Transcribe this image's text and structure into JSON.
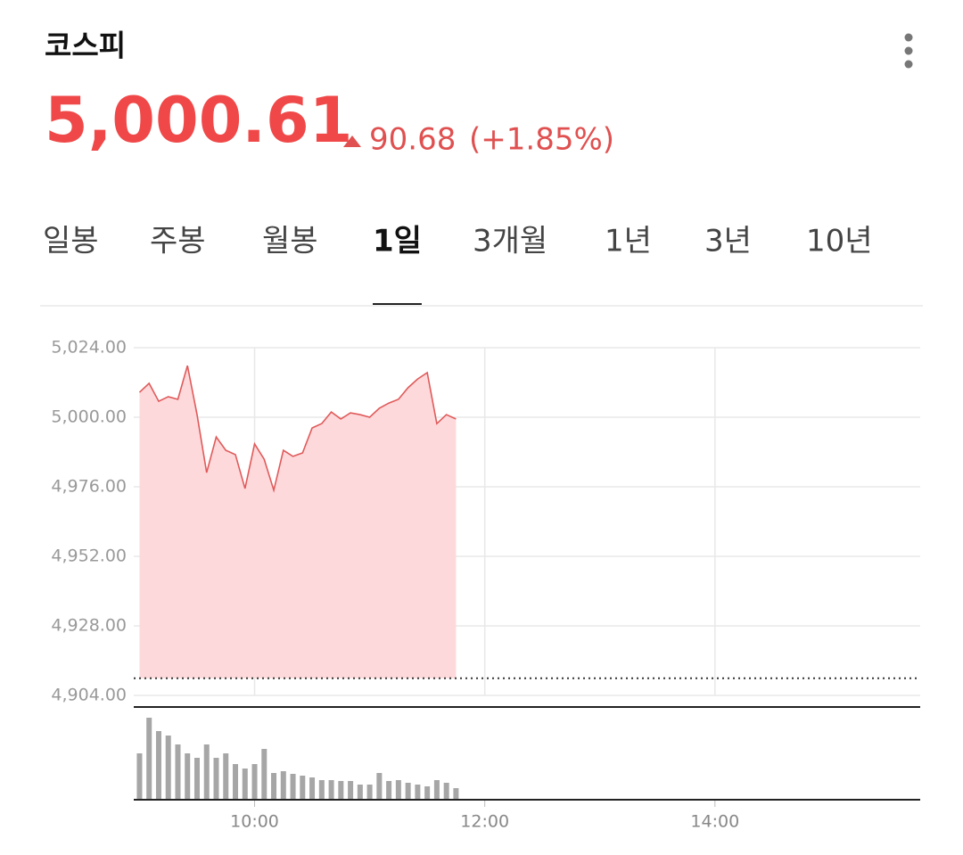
{
  "header": {
    "title": "코스피",
    "price": "5,000.61",
    "change": "90.68",
    "change_pct": "(+1.85%)"
  },
  "tabs": {
    "items": [
      "일봉",
      "주봉",
      "월봉",
      "1일",
      "3개월",
      "1년",
      "3년",
      "10년"
    ],
    "selected": 3
  },
  "chart_data": {
    "type": "line",
    "x": [
      540,
      545,
      550,
      555,
      560,
      565,
      570,
      575,
      580,
      585,
      590,
      595,
      600,
      605,
      610,
      615,
      620,
      625,
      630,
      635,
      640,
      645,
      650,
      655,
      660,
      665,
      670,
      675,
      680,
      685,
      690,
      695,
      700,
      705
    ],
    "series": [
      {
        "name": "코스피",
        "color": "#e05a5a",
        "fill": "#fdd9db",
        "values": [
          5008.6,
          5011.7,
          5005.5,
          5007.1,
          5006.2,
          5017.8,
          5000.9,
          4980.9,
          4993.2,
          4988.6,
          4987.1,
          4975.4,
          4990.8,
          4985.5,
          4974.8,
          4988.6,
          4986.5,
          4987.7,
          4996.3,
          4997.8,
          5001.8,
          4999.4,
          5001.5,
          5000.9,
          5000.0,
          5003.1,
          5004.9,
          5006.2,
          5010.2,
          5013.2,
          5015.4,
          4997.8,
          5000.9,
          4999.4
        ]
      }
    ],
    "volume": {
      "color": "#a6a6a6",
      "values": [
        52,
        92,
        77,
        72,
        62,
        52,
        47,
        62,
        47,
        52,
        40,
        35,
        40,
        57,
        30,
        32,
        29,
        27,
        25,
        22,
        22,
        21,
        21,
        17,
        17,
        30,
        21,
        22,
        19,
        17,
        15,
        22,
        19,
        13
      ],
      "lim": [
        0,
        100
      ]
    },
    "reference": 4909.93,
    "xlim": [
      537,
      947
    ],
    "xticks": [
      {
        "value": 600,
        "label": "10:00"
      },
      {
        "value": 720,
        "label": "12:00"
      },
      {
        "value": 840,
        "label": "14:00"
      }
    ],
    "ylim": [
      4904,
      5024
    ],
    "yticks": [
      {
        "value": 4904,
        "label": "4,904.00"
      },
      {
        "value": 4928,
        "label": "4,928.00"
      },
      {
        "value": 4952,
        "label": "4,952.00"
      },
      {
        "value": 4976,
        "label": "4,976.00"
      },
      {
        "value": 5000,
        "label": "5,000.00"
      },
      {
        "value": 5024,
        "label": "5,024.00"
      }
    ],
    "grid": true
  }
}
